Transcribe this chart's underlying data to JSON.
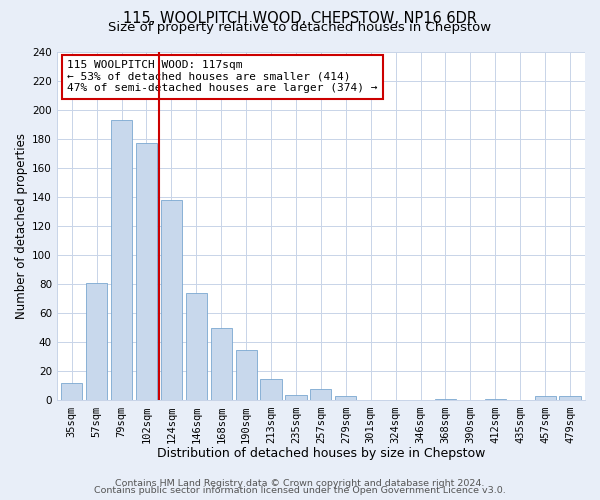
{
  "title": "115, WOOLPITCH WOOD, CHEPSTOW, NP16 6DR",
  "subtitle": "Size of property relative to detached houses in Chepstow",
  "xlabel": "Distribution of detached houses by size in Chepstow",
  "ylabel": "Number of detached properties",
  "bar_labels": [
    "35sqm",
    "57sqm",
    "79sqm",
    "102sqm",
    "124sqm",
    "146sqm",
    "168sqm",
    "190sqm",
    "213sqm",
    "235sqm",
    "257sqm",
    "279sqm",
    "301sqm",
    "324sqm",
    "346sqm",
    "368sqm",
    "390sqm",
    "412sqm",
    "435sqm",
    "457sqm",
    "479sqm"
  ],
  "bar_values": [
    12,
    81,
    193,
    177,
    138,
    74,
    50,
    35,
    15,
    4,
    8,
    3,
    0,
    0,
    0,
    1,
    0,
    1,
    0,
    3,
    3
  ],
  "bar_color": "#c8d8ec",
  "bar_edge_color": "#7aa8d0",
  "vline_index": 3.5,
  "vline_color": "#cc0000",
  "ylim": [
    0,
    240
  ],
  "yticks": [
    0,
    20,
    40,
    60,
    80,
    100,
    120,
    140,
    160,
    180,
    200,
    220,
    240
  ],
  "annotation_line1": "115 WOOLPITCH WOOD: 117sqm",
  "annotation_line2": "← 53% of detached houses are smaller (414)",
  "annotation_line3": "47% of semi-detached houses are larger (374) →",
  "annotation_box_facecolor": "#ffffff",
  "annotation_box_edgecolor": "#cc0000",
  "footer_line1": "Contains HM Land Registry data © Crown copyright and database right 2024.",
  "footer_line2": "Contains public sector information licensed under the Open Government Licence v3.0.",
  "fig_facecolor": "#e8eef8",
  "plot_facecolor": "#ffffff",
  "title_fontsize": 10.5,
  "subtitle_fontsize": 9.5,
  "xlabel_fontsize": 9,
  "ylabel_fontsize": 8.5,
  "tick_fontsize": 7.5,
  "annotation_fontsize": 8,
  "footer_fontsize": 6.8
}
